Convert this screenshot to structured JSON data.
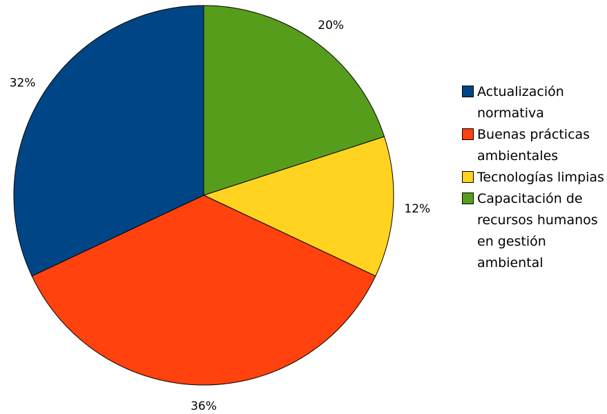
{
  "chart_data": {
    "type": "pie",
    "slices": [
      {
        "label": "Actualización normativa",
        "value": 32,
        "display": "32%",
        "color": "#004586"
      },
      {
        "label": "Buenas prácticas ambientales",
        "value": 36,
        "display": "36%",
        "color": "#ff420e"
      },
      {
        "label": "Tecnologías limpias",
        "value": 12,
        "display": "12%",
        "color": "#ffd320"
      },
      {
        "label": "Capacitación de recursos humanos en gestión ambiental",
        "value": 20,
        "display": "20%",
        "color": "#579d1c"
      }
    ],
    "start_angle_deg": 0,
    "direction": "clockwise",
    "legend_position": "right"
  }
}
